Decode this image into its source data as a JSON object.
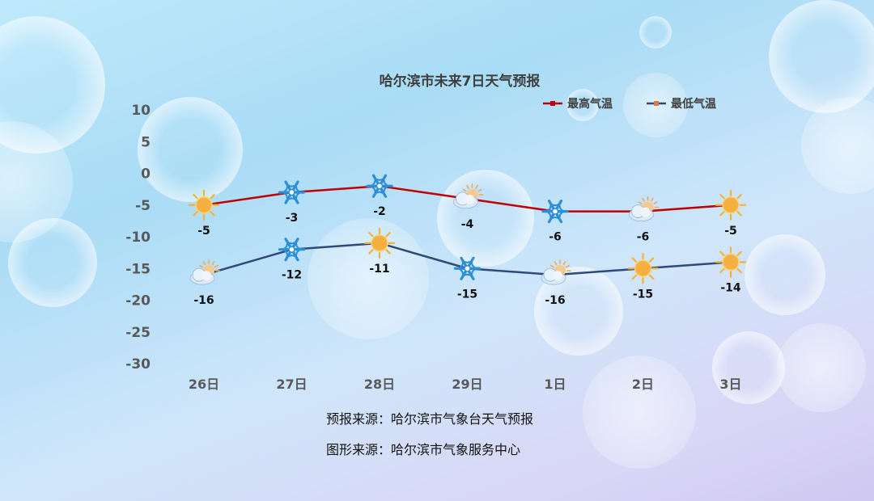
{
  "chart_data": {
    "type": "line",
    "title": "哈尔滨市未来7日天气预报",
    "categories": [
      "26日",
      "27日",
      "28日",
      "29日",
      "1日",
      "2日",
      "3日"
    ],
    "ylim": [
      -30,
      10
    ],
    "yticks": [
      10,
      5,
      0,
      -5,
      -10,
      -15,
      -20,
      -25,
      -30
    ],
    "legend_position": "top-right",
    "series": [
      {
        "name": "最高气温",
        "color": "#c00000",
        "values": [
          -5,
          -3,
          -2,
          -4,
          -6,
          -6,
          -5
        ],
        "icons": [
          "sun-icon",
          "snowflake-icon",
          "snowflake-icon",
          "cloudy-sun-icon",
          "snowflake-icon",
          "cloudy-sun-icon",
          "sun-icon"
        ]
      },
      {
        "name": "最低气温",
        "color": "#2e4a7a",
        "values": [
          -16,
          -12,
          -11,
          -15,
          -16,
          -15,
          -14
        ],
        "icons": [
          "cloudy-sun-icon",
          "snowflake-icon",
          "sun-icon",
          "snowflake-icon",
          "cloudy-sun-icon",
          "sun-icon",
          "sun-icon"
        ]
      }
    ]
  },
  "sources": {
    "forecast": "预报来源：哈尔滨市气象台天气预报",
    "graphic": "图形来源：哈尔滨市气象服务中心"
  }
}
